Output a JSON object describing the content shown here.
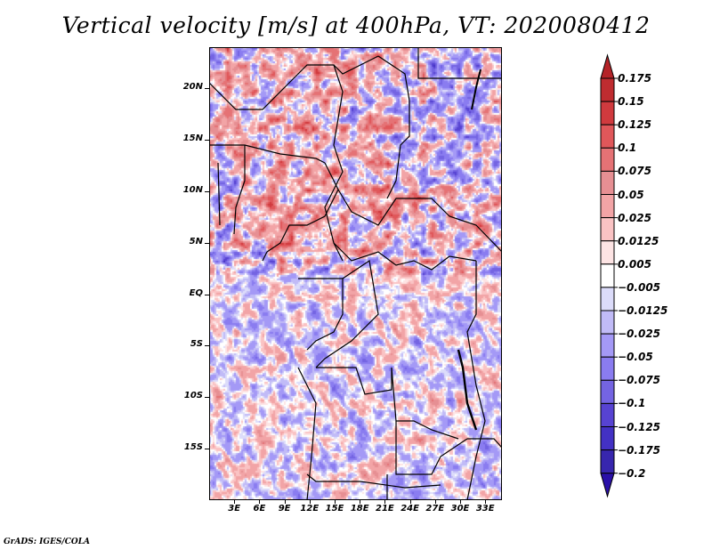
{
  "title": "Vertical velocity [m/s] at 400hPa, VT: 2020080412",
  "footer": "GrADS: IGES/COLA",
  "map": {
    "variable": "Vertical velocity",
    "units": "m/s",
    "level": "400hPa",
    "valid_time": "2020080412",
    "lon_range": [
      0,
      35
    ],
    "lat_range": [
      -20,
      24
    ],
    "y_axis_labels": [
      {
        "label": "20N",
        "lat": 20
      },
      {
        "label": "15N",
        "lat": 15
      },
      {
        "label": "10N",
        "lat": 10
      },
      {
        "label": "5N",
        "lat": 5
      },
      {
        "label": "EQ",
        "lat": 0
      },
      {
        "label": "5S",
        "lat": -5
      },
      {
        "label": "10S",
        "lat": -10
      },
      {
        "label": "15S",
        "lat": -15
      }
    ],
    "x_axis_labels": [
      {
        "label": "3E",
        "lon": 3
      },
      {
        "label": "6E",
        "lon": 6
      },
      {
        "label": "9E",
        "lon": 9
      },
      {
        "label": "12E",
        "lon": 12
      },
      {
        "label": "15E",
        "lon": 15
      },
      {
        "label": "18E",
        "lon": 18
      },
      {
        "label": "21E",
        "lon": 21
      },
      {
        "label": "24E",
        "lon": 24
      },
      {
        "label": "27E",
        "lon": 27
      },
      {
        "label": "30E",
        "lon": 30
      },
      {
        "label": "33E",
        "lon": 33
      }
    ]
  },
  "colorbar": {
    "labels": [
      "0.175",
      "0.15",
      "0.125",
      "0.1",
      "0.075",
      "0.05",
      "0.025",
      "0.0125",
      "0.005",
      "−0.005",
      "−0.0125",
      "−0.025",
      "−0.05",
      "−0.075",
      "−0.1",
      "−0.125",
      "−0.175",
      "−0.2"
    ],
    "colors": [
      "#b42328",
      "#bf2c30",
      "#d03a3e",
      "#e0575a",
      "#e57275",
      "#e68f93",
      "#f2a4a6",
      "#fac3c4",
      "#fde4e4",
      "#ffffff",
      "#dcdcfa",
      "#c1bbf7",
      "#a499f6",
      "#8a7cf0",
      "#7464e2",
      "#5743d2",
      "#4331c4",
      "#3726ae",
      "#2c1aa0"
    ],
    "top_arrow_color": "#b42328",
    "bottom_arrow_color": "#2a10a8"
  }
}
